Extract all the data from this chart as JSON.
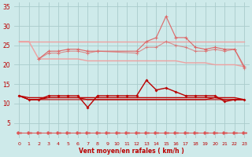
{
  "x": [
    0,
    1,
    2,
    3,
    4,
    5,
    6,
    7,
    8,
    9,
    10,
    11,
    12,
    13,
    14,
    15,
    16,
    17,
    18,
    19,
    20,
    21,
    22,
    23
  ],
  "line_flat_top": [
    26,
    26,
    26,
    26,
    26,
    26,
    26,
    26,
    26,
    26,
    26,
    26,
    26,
    26,
    26,
    26,
    26,
    26,
    26,
    26,
    26,
    26,
    26,
    26
  ],
  "line_declining": [
    26,
    26,
    21.5,
    21.5,
    21.5,
    21.5,
    21.5,
    21,
    21,
    21,
    21,
    21,
    21,
    21,
    21,
    21,
    21,
    20.5,
    20.5,
    20.5,
    20,
    20,
    20,
    19.5
  ],
  "line_wavy_top": [
    null,
    null,
    21.5,
    23.5,
    23.5,
    24,
    24,
    23.5,
    23.5,
    null,
    null,
    null,
    23.5,
    26,
    27,
    32.5,
    27,
    27,
    24.5,
    24,
    24.5,
    24,
    24,
    19.5
  ],
  "line_medium": [
    null,
    null,
    21.5,
    23,
    23,
    23.5,
    23.5,
    23,
    23.5,
    null,
    null,
    null,
    23,
    24.5,
    24.5,
    26,
    25,
    24.5,
    23.5,
    23.5,
    24,
    23.5,
    24,
    19
  ],
  "line_lower_wavy": [
    12,
    11,
    11,
    12,
    12,
    12,
    12,
    9,
    12,
    12,
    12,
    12,
    12,
    16,
    13.5,
    14,
    13,
    12,
    12,
    12,
    12,
    10.5,
    11,
    11
  ],
  "line_flat1": [
    12,
    11.5,
    11.5,
    11.5,
    11.5,
    11.5,
    11.5,
    11.5,
    11.5,
    11.5,
    11.5,
    11.5,
    11.5,
    11.5,
    11.5,
    11.5,
    11.5,
    11.5,
    11.5,
    11.5,
    11.5,
    11.5,
    11.5,
    11
  ],
  "line_flat2": [
    12,
    11,
    11,
    11,
    11,
    11,
    11,
    11,
    11,
    11,
    11,
    11,
    11,
    11,
    11,
    11,
    11,
    11,
    11,
    11,
    11,
    11,
    11,
    11
  ],
  "line_flat3": [
    12,
    11,
    11,
    11.5,
    11.5,
    11.5,
    11.5,
    11,
    11,
    11,
    11,
    11,
    11,
    11,
    11,
    11,
    11,
    11,
    11,
    11,
    11.5,
    11,
    11,
    11
  ],
  "line_arrow": [
    2.5,
    2.5,
    2.5,
    2.5,
    2.5,
    2.5,
    2.5,
    2.5,
    2.5,
    2.5,
    2.5,
    2.5,
    2.5,
    2.5,
    2.5,
    2.5,
    2.5,
    2.5,
    2.5,
    2.5,
    2.5,
    2.5,
    2.5,
    2.5
  ],
  "bg_color": "#ceeaea",
  "grid_color": "#aacccc",
  "line_color_dark": "#bb0000",
  "line_color_mid": "#dd6666",
  "line_color_light": "#eea0a0",
  "arrow_color": "#dd5555",
  "xlabel": "Vent moyen/en rafales ( km/h )",
  "xlim": [
    -0.5,
    23.5
  ],
  "ylim": [
    1,
    36
  ],
  "yticks": [
    5,
    10,
    15,
    20,
    25,
    30,
    35
  ],
  "xticks": [
    0,
    1,
    2,
    3,
    4,
    5,
    6,
    7,
    8,
    9,
    10,
    11,
    12,
    13,
    14,
    15,
    16,
    17,
    18,
    19,
    20,
    21,
    22,
    23
  ]
}
